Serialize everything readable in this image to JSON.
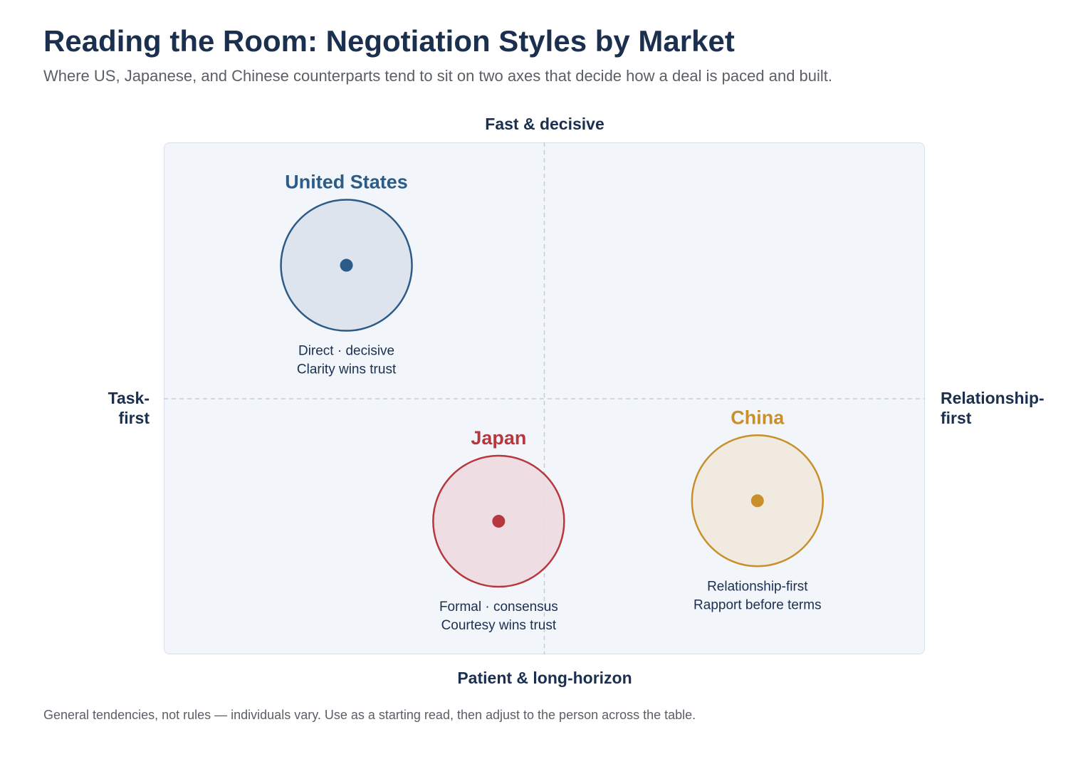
{
  "title": "Reading the Room: Negotiation Styles by Market",
  "subtitle": "Where US, Japanese, and Chinese counterparts tend to sit on two axes that decide how a deal is paced and built.",
  "axes": {
    "top": "Fast & decisive",
    "bottom": "Patient & long-horizon",
    "left": [
      "Task-",
      "first"
    ],
    "right": [
      "Relationship-",
      "first"
    ]
  },
  "footnote": "General tendencies, not rules — individuals vary. Use as a starting read, then adjust to the person across the table.",
  "markets": [
    {
      "id": "us",
      "name": "United States",
      "color": "#2d5b87",
      "fill": "#dae2eb",
      "position": {
        "relationship": 0.24,
        "pace": 0.24
      },
      "notes": [
        "Direct · decisive",
        "Clarity wins trust"
      ]
    },
    {
      "id": "japan",
      "name": "Japan",
      "color": "#b5383f",
      "fill": "#eddce1",
      "position": {
        "relationship": 0.44,
        "pace": 0.74
      },
      "notes": [
        "Formal · consensus",
        "Courtesy wins trust"
      ]
    },
    {
      "id": "china",
      "name": "China",
      "color": "#c98f2a",
      "fill": "#f1e9de",
      "position": {
        "relationship": 0.78,
        "pace": 0.7
      },
      "notes": [
        "Relationship-first",
        "Rapport before terms"
      ]
    }
  ]
}
